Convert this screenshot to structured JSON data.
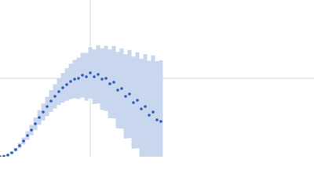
{
  "chart_data": {
    "type": "scatter",
    "x": [
      0,
      5,
      10,
      15,
      20,
      25,
      30,
      35,
      40,
      45,
      50,
      55,
      60,
      65,
      70,
      75,
      80,
      85,
      90,
      95,
      100,
      105,
      110,
      115,
      120,
      125,
      130,
      135,
      140,
      145,
      150,
      155,
      160,
      165,
      170,
      175,
      180,
      185,
      190,
      195,
      200,
      205
    ],
    "series": [
      {
        "color": "#2f5fb3",
        "error_color": "#c8d6ee",
        "values": [
          0,
          0.005,
          0.02,
          0.05,
          0.09,
          0.14,
          0.2,
          0.27,
          0.34,
          0.42,
          0.5,
          0.57,
          0.64,
          0.71,
          0.77,
          0.83,
          0.88,
          0.92,
          0.96,
          0.99,
          1.0,
          1.04,
          1.02,
          1.07,
          1.02,
          1.05,
          0.99,
          1.0,
          0.93,
          0.95,
          0.85,
          0.87,
          0.77,
          0.8,
          0.69,
          0.72,
          0.61,
          0.64,
          0.53,
          0.57,
          0.47,
          0.45
        ],
        "errors": [
          0,
          0.003,
          0.008,
          0.015,
          0.024,
          0.033,
          0.044,
          0.055,
          0.067,
          0.08,
          0.094,
          0.108,
          0.123,
          0.139,
          0.155,
          0.172,
          0.19,
          0.208,
          0.226,
          0.245,
          0.265,
          0.285,
          0.306,
          0.327,
          0.349,
          0.371,
          0.393,
          0.416,
          0.439,
          0.463,
          0.487,
          0.512,
          0.537,
          0.562,
          0.588,
          0.614,
          0.64,
          0.667,
          0.694,
          0.722,
          0.75,
          0.78
        ]
      }
    ],
    "xlim": [
      0,
      400
    ],
    "ylim": [
      0,
      2
    ],
    "xticks": [
      115
    ],
    "yticks": [
      1
    ],
    "grid": true
  }
}
